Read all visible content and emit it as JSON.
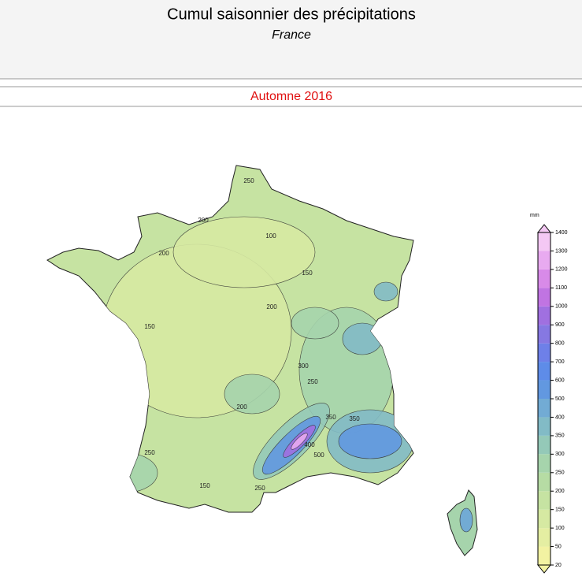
{
  "header": {
    "title": "Cumul saisonnier des précipitations",
    "subtitle": "France"
  },
  "period": "Automne 2016",
  "colorbar": {
    "unit": "mm",
    "ticks": [
      20,
      50,
      100,
      150,
      200,
      250,
      300,
      350,
      400,
      500,
      600,
      700,
      800,
      900,
      1000,
      1100,
      1200,
      1300,
      1400
    ],
    "colors": [
      "#f2f2a2",
      "#e4eea2",
      "#d6e9a2",
      "#c6e3a2",
      "#b6dca4",
      "#a6d4ac",
      "#94c9b8",
      "#82bbc6",
      "#72abd4",
      "#6298e0",
      "#5e8ce8",
      "#6e80e8",
      "#8678e2",
      "#a070e0",
      "#c074e2",
      "#d88ae8",
      "#e8aaf0",
      "#f4c8f4"
    ]
  },
  "map": {
    "contour_labels": [
      "200",
      "250",
      "200",
      "100",
      "150",
      "200",
      "150",
      "200",
      "250",
      "300",
      "350",
      "400",
      "500",
      "250",
      "150",
      "250",
      "350"
    ]
  }
}
